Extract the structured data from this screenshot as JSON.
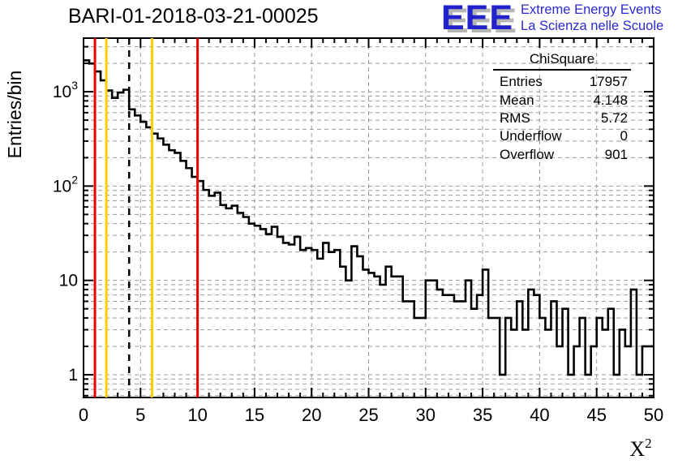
{
  "title": "BARI-01-2018-03-21-00025",
  "logo": {
    "acronym": "EEE",
    "line1": "Extreme Energy Events",
    "line2": "La Scienza nelle Scuole",
    "color": "#2222cc"
  },
  "stats": {
    "title": "ChiSquare",
    "rows": [
      {
        "label": "Entries",
        "value": "17957"
      },
      {
        "label": "Mean",
        "value": "4.148"
      },
      {
        "label": "RMS",
        "value": "5.72"
      },
      {
        "label": "Underflow",
        "value": "0"
      },
      {
        "label": "Overflow",
        "value": "901"
      }
    ]
  },
  "chart_data": {
    "type": "bar",
    "style": "step-histogram-outline",
    "title": "BARI-01-2018-03-21-00025",
    "xlabel": "X^2",
    "ylabel": "Entries/bin",
    "yscale": "log",
    "xlim": [
      0,
      50
    ],
    "ylim": [
      0.574,
      3700
    ],
    "grid": "dashed-gray-major-and-minor",
    "x_start": 0,
    "bin_width": 0.5,
    "counts": [
      2150,
      1990,
      1640,
      1320,
      1030,
      860,
      980,
      1050,
      650,
      560,
      480,
      420,
      360,
      320,
      275,
      240,
      225,
      185,
      155,
      125,
      113,
      91,
      79,
      85,
      63,
      58,
      62,
      52,
      47,
      40,
      38,
      35,
      31,
      37,
      29,
      25,
      24,
      29,
      21,
      22,
      21,
      17,
      25,
      20,
      21,
      14,
      10,
      23,
      18,
      13,
      12,
      11,
      9,
      14,
      11,
      11,
      6,
      6,
      4,
      4,
      10,
      10,
      8,
      7,
      7,
      6,
      6,
      10,
      5,
      7,
      13,
      4,
      4,
      1,
      4,
      3,
      6,
      3,
      8,
      7,
      4,
      3,
      6,
      2,
      5,
      1,
      2,
      4,
      1,
      2,
      4,
      3,
      5,
      1,
      3,
      2,
      8,
      1,
      2,
      2
    ],
    "x_tick_labels": [
      0,
      5,
      10,
      15,
      20,
      25,
      30,
      35,
      40,
      45,
      50
    ],
    "x_minor_tick_step": 1,
    "y_tick_labels": [
      {
        "v": 1,
        "label": "1"
      },
      {
        "v": 10,
        "label": "10"
      },
      {
        "v": 100,
        "label": "10^2"
      },
      {
        "v": 1000,
        "label": "10^3"
      }
    ],
    "vlines": [
      {
        "x": 1,
        "color": "#ee0000",
        "style": "solid"
      },
      {
        "x": 2,
        "color": "#ffcc00",
        "style": "solid"
      },
      {
        "x": 4,
        "color": "#000000",
        "style": "dashed"
      },
      {
        "x": 6,
        "color": "#ffcc00",
        "style": "solid"
      },
      {
        "x": 10,
        "color": "#ee0000",
        "style": "solid"
      }
    ],
    "colors": {
      "hist_line": "#000000",
      "grid": "#9a9a9a",
      "frame": "#000000"
    }
  }
}
